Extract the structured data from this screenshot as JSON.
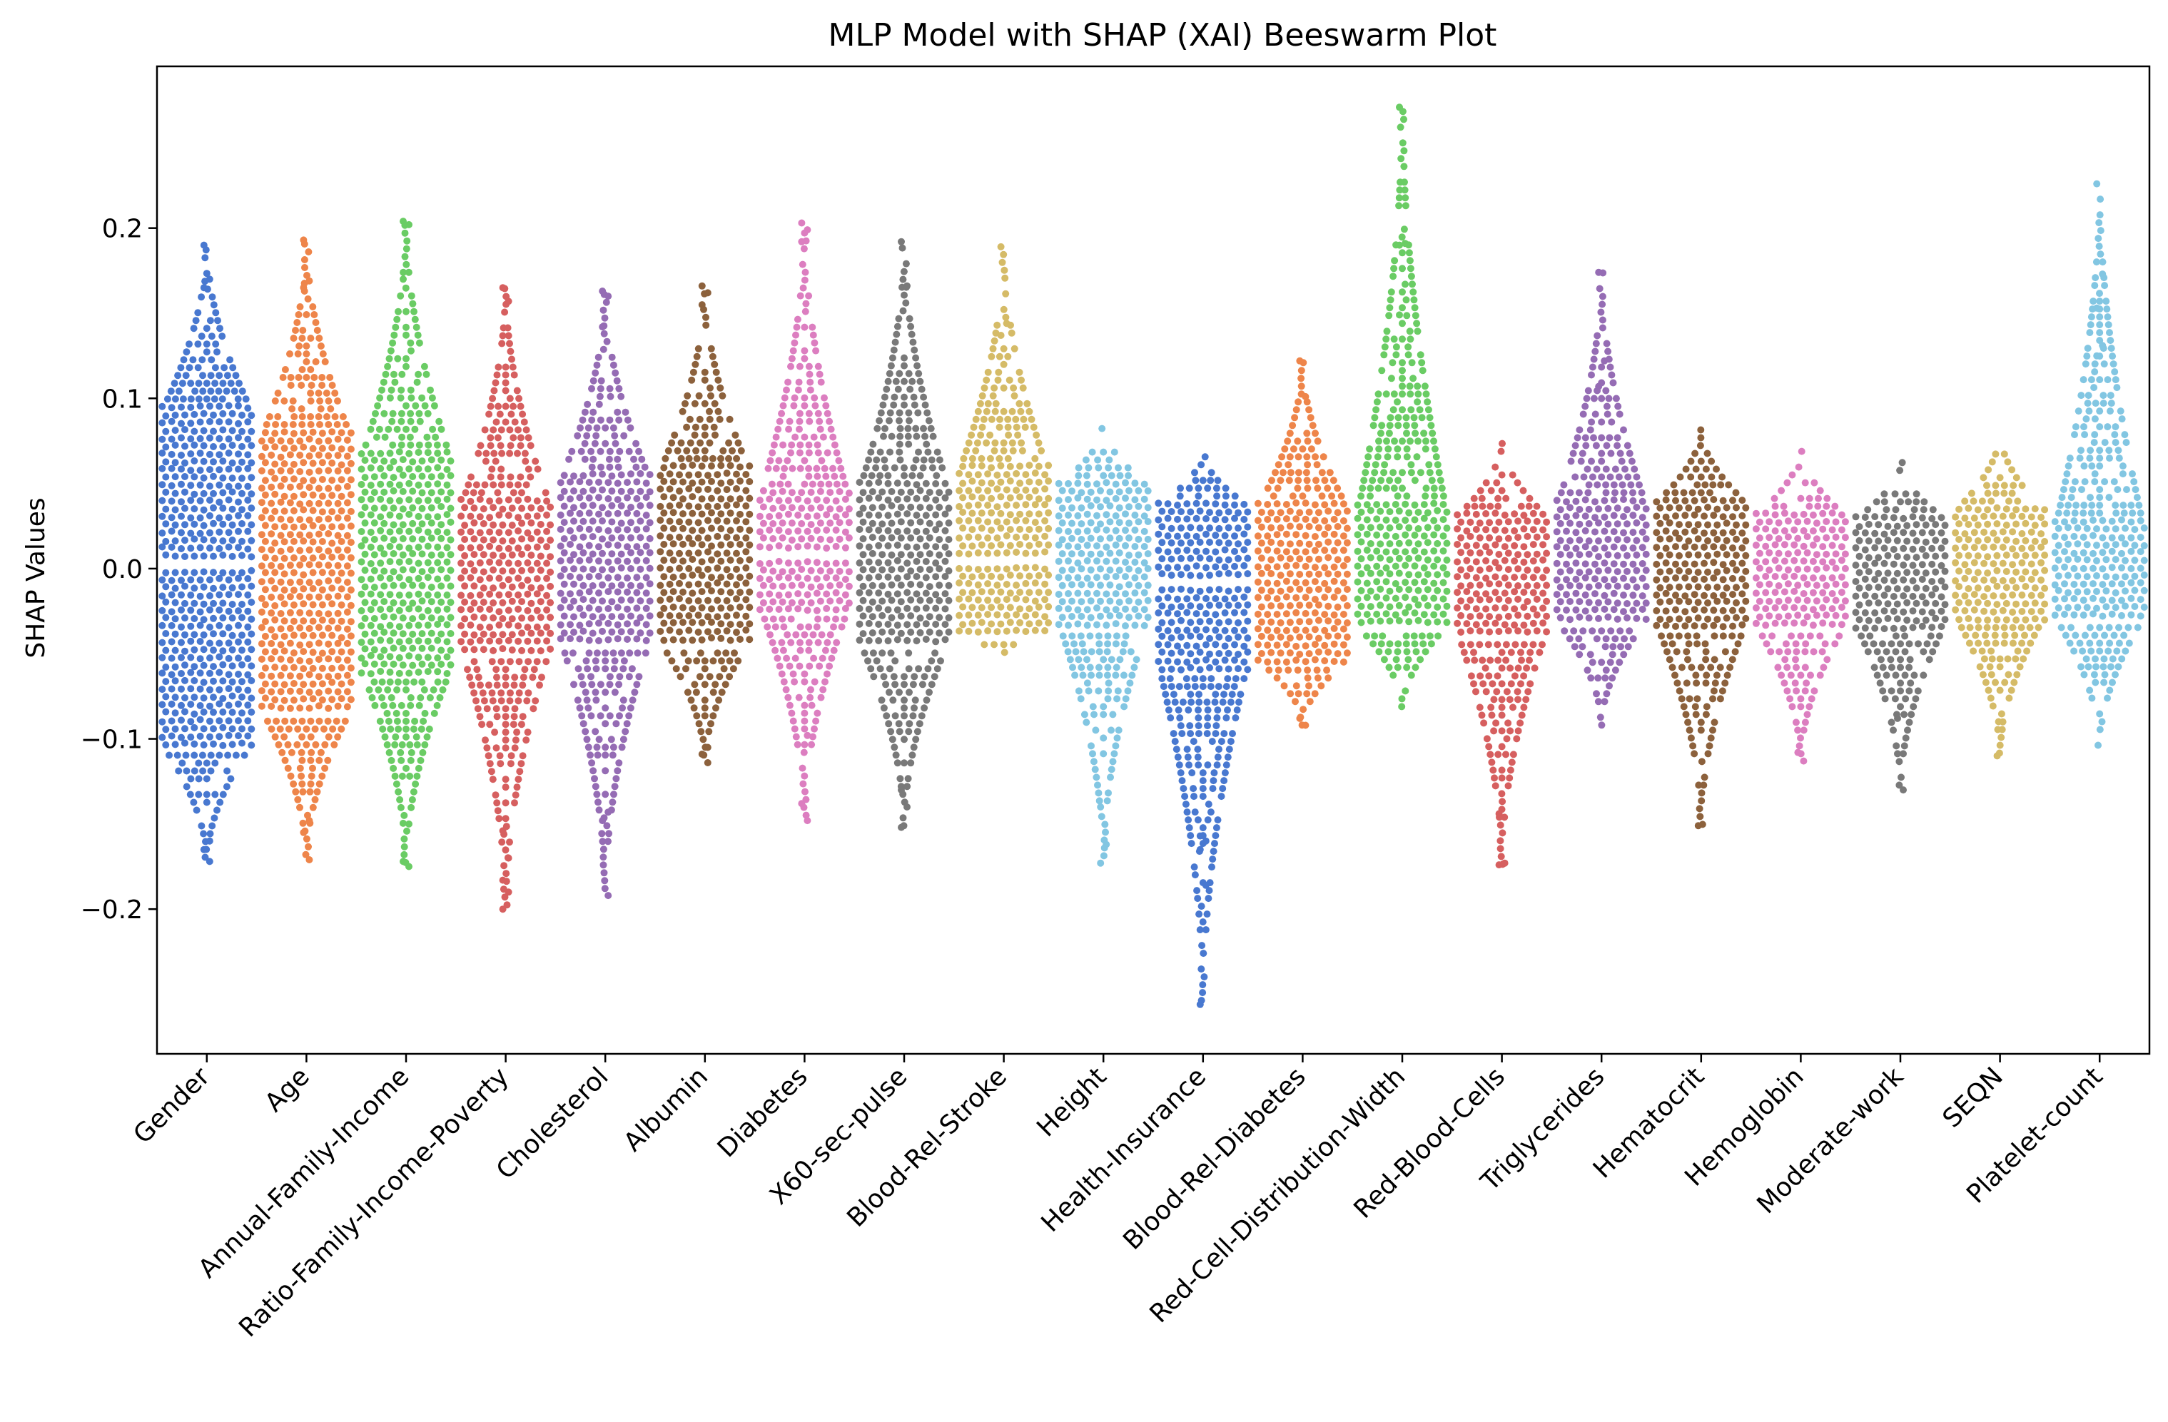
{
  "chart_data": {
    "type": "scatter",
    "subtype": "beeswarm",
    "title": "MLP Model with SHAP (XAI) Beeswarm Plot",
    "xlabel": "",
    "ylabel": "SHAP Values",
    "ylim": [
      -0.285,
      0.295
    ],
    "yticks": [
      -0.2,
      -0.1,
      0.0,
      0.1,
      0.2
    ],
    "ytick_labels": [
      "−0.2",
      "−0.1",
      "0.0",
      "0.1",
      "0.2"
    ],
    "grid": false,
    "legend": "none",
    "categories": [
      "Gender",
      "Age",
      "Annual-Family-Income",
      "Ratio-Family-Income-Poverty",
      "Cholesterol",
      "Albumin",
      "Diabetes",
      "X60-sec-pulse",
      "Blood-Rel-Stroke",
      "Height",
      "Health-Insurance",
      "Blood-Rel-Diabetes",
      "Red-Cell-Distribution-Width",
      "Red-Blood-Cells",
      "Triglycerides",
      "Hematocrit",
      "Hemoglobin",
      "Moderate-work",
      "SEQN",
      "Platelet-count"
    ],
    "colors": [
      "#4878d0",
      "#ee854a",
      "#6acc64",
      "#d65f5f",
      "#956cb4",
      "#8c613c",
      "#dc7ec0",
      "#797979",
      "#d5bb67",
      "#82c6e2",
      "#4878d0",
      "#ee854a",
      "#6acc64",
      "#d65f5f",
      "#956cb4",
      "#8c613c",
      "#dc7ec0",
      "#797979",
      "#d5bb67",
      "#82c6e2"
    ],
    "series": [
      {
        "max": 0.19,
        "min": -0.172,
        "q_hi": 0.095,
        "q_lo": -0.105,
        "mode": -0.03,
        "gap": [
          0.0,
          0.006
        ],
        "outliers": [
          0.19,
          0.17,
          0.165,
          -0.16,
          -0.165,
          -0.172
        ]
      },
      {
        "max": 0.193,
        "min": -0.171,
        "q_hi": 0.08,
        "q_lo": -0.085,
        "mode": 0.0,
        "gap": null,
        "outliers": [
          0.193,
          0.169,
          0.165,
          -0.148,
          -0.155,
          -0.171
        ]
      },
      {
        "max": 0.204,
        "min": -0.175,
        "q_hi": 0.068,
        "q_lo": -0.062,
        "mode": 0.0,
        "gap": null,
        "outliers": [
          0.204,
          0.202,
          0.17,
          -0.15,
          -0.172,
          -0.175
        ]
      },
      {
        "max": 0.165,
        "min": -0.2,
        "q_hi": 0.04,
        "q_lo": -0.05,
        "mode": -0.01,
        "gap": null,
        "outliers": [
          0.165,
          0.157,
          -0.154,
          -0.17,
          -0.183,
          -0.19,
          -0.2
        ]
      },
      {
        "max": 0.163,
        "min": -0.192,
        "q_hi": 0.055,
        "q_lo": -0.045,
        "mode": 0.0,
        "gap": null,
        "outliers": [
          0.163,
          0.16,
          0.142,
          -0.143,
          -0.148,
          -0.192
        ]
      },
      {
        "max": 0.166,
        "min": -0.114,
        "q_hi": 0.06,
        "q_lo": -0.045,
        "mode": 0.01,
        "gap": null,
        "outliers": [
          0.166,
          0.162,
          0.155,
          -0.105,
          -0.109,
          -0.114
        ]
      },
      {
        "max": 0.203,
        "min": -0.148,
        "q_hi": 0.045,
        "q_lo": -0.025,
        "mode": 0.0,
        "gap": [
          0.005,
          0.009
        ],
        "outliers": [
          0.203,
          0.199,
          0.192,
          -0.098,
          -0.138,
          -0.148
        ]
      },
      {
        "max": 0.192,
        "min": -0.152,
        "q_hi": 0.05,
        "q_lo": -0.045,
        "mode": 0.0,
        "gap": null,
        "outliers": [
          0.192,
          0.166,
          -0.13,
          -0.14,
          -0.152
        ]
      },
      {
        "max": 0.189,
        "min": -0.053,
        "q_hi": 0.06,
        "q_lo": -0.04,
        "mode": 0.01,
        "gap": [
          0.002,
          0.006
        ],
        "outliers": [
          0.189,
          0.144,
          0.137
        ]
      },
      {
        "max": 0.085,
        "min": -0.173,
        "q_hi": 0.05,
        "q_lo": -0.035,
        "mode": 0.0,
        "gap": null,
        "outliers": [
          -0.14,
          -0.162,
          -0.173
        ]
      },
      {
        "max": 0.069,
        "min": -0.256,
        "q_hi": 0.038,
        "q_lo": -0.06,
        "mode": -0.02,
        "gap": [
          -0.005,
          -0.009
        ],
        "outliers": [
          -0.157,
          -0.16,
          -0.165,
          -0.186,
          -0.256
        ]
      },
      {
        "max": 0.122,
        "min": -0.092,
        "q_hi": 0.038,
        "q_lo": -0.055,
        "mode": -0.01,
        "gap": null,
        "outliers": [
          0.122,
          0.101,
          -0.088,
          -0.092
        ]
      },
      {
        "max": 0.271,
        "min": -0.083,
        "q_hi": 0.038,
        "q_lo": -0.035,
        "mode": 0.0,
        "gap": null,
        "outliers": [
          0.271,
          0.191,
          0.19,
          0.167,
          0.149
        ]
      },
      {
        "max": 0.075,
        "min": -0.174,
        "q_hi": 0.032,
        "q_lo": -0.04,
        "mode": -0.01,
        "gap": null,
        "outliers": [
          -0.144,
          -0.173,
          -0.174
        ]
      },
      {
        "max": 0.174,
        "min": -0.092,
        "q_hi": 0.04,
        "q_lo": -0.032,
        "mode": 0.0,
        "gap": null,
        "outliers": [
          0.174,
          0.122,
          0.107
        ]
      },
      {
        "max": 0.082,
        "min": -0.151,
        "q_hi": 0.04,
        "q_lo": -0.035,
        "mode": 0.0,
        "gap": null,
        "outliers": [
          -0.151
        ]
      },
      {
        "max": 0.071,
        "min": -0.113,
        "q_hi": 0.032,
        "q_lo": -0.035,
        "mode": 0.0,
        "gap": null,
        "outliers": [
          -0.108,
          -0.113
        ]
      },
      {
        "max": 0.063,
        "min": -0.13,
        "q_hi": 0.03,
        "q_lo": -0.035,
        "mode": 0.0,
        "gap": null,
        "outliers": [
          -0.088,
          -0.13
        ]
      },
      {
        "max": 0.08,
        "min": -0.11,
        "q_hi": 0.035,
        "q_lo": -0.03,
        "mode": 0.0,
        "gap": null,
        "outliers": [
          -0.11,
          -0.09
        ]
      },
      {
        "max": 0.226,
        "min": -0.105,
        "q_hi": 0.028,
        "q_lo": -0.03,
        "mode": 0.0,
        "gap": null,
        "outliers": [
          0.226,
          0.173,
          0.153,
          0.131,
          0.125
        ]
      }
    ]
  }
}
